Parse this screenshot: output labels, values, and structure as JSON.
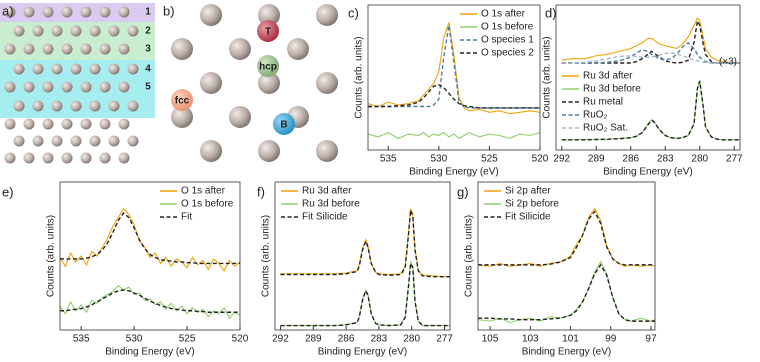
{
  "diagrams": {
    "a": {
      "label": "a)",
      "layers": [
        "1",
        "2",
        "3",
        "4",
        "5"
      ]
    },
    "b": {
      "label": "b)",
      "sites": [
        "T",
        "hcp",
        "fcc",
        "B"
      ]
    }
  },
  "chart_data": [
    {
      "type": "line",
      "panel_label": "c)",
      "xlabel": "Binding Energy (eV)",
      "ylabel": "Counts (arb. units)",
      "x": [
        537,
        536,
        535,
        534,
        533,
        532,
        531.5,
        531,
        530.5,
        530,
        529.5,
        529,
        528.5,
        528,
        527.5,
        527,
        526,
        525,
        524,
        523,
        522,
        521,
        520
      ],
      "xlim": [
        537,
        520
      ],
      "xticks": [
        535,
        530,
        525,
        520
      ],
      "ylim": [
        0,
        10
      ],
      "legend": "upper right",
      "series": [
        {
          "name": "O 1s after",
          "color": "#f0a30a",
          "values": [
            3.2,
            3.0,
            3.3,
            3.1,
            3.2,
            3.4,
            3.8,
            4.2,
            4.6,
            5.4,
            7.8,
            8.8,
            6.5,
            3.6,
            2.9,
            2.7,
            2.8,
            2.6,
            2.7,
            2.5,
            2.6,
            2.7,
            2.6
          ]
        },
        {
          "name": "O 1s before",
          "color": "#8fcf6b",
          "values": [
            1.1,
            0.9,
            1.2,
            0.8,
            1.1,
            1.0,
            1.2,
            0.9,
            1.1,
            1.0,
            1.2,
            0.9,
            1.1,
            0.8,
            1.0,
            1.2,
            0.9,
            1.1,
            1.0,
            0.8,
            1.1,
            1.0,
            1.2
          ]
        },
        {
          "name": "O species 1",
          "color": "#4a7fa0",
          "dash": true,
          "values": [
            3.0,
            3.0,
            3.0,
            3.0,
            3.0,
            3.0,
            3.0,
            3.0,
            3.1,
            3.5,
            6.5,
            8.6,
            6.0,
            3.3,
            3.0,
            2.9,
            2.9,
            2.9,
            2.9,
            2.9,
            2.9,
            2.9,
            2.9
          ]
        },
        {
          "name": "O species 2",
          "color": "#222222",
          "dash": true,
          "values": [
            3.0,
            3.0,
            3.0,
            3.05,
            3.1,
            3.3,
            3.6,
            4.0,
            4.4,
            4.5,
            4.3,
            3.9,
            3.5,
            3.2,
            3.05,
            3.0,
            2.9,
            2.9,
            2.9,
            2.9,
            2.9,
            2.9,
            2.9
          ]
        }
      ]
    },
    {
      "type": "line",
      "panel_label": "d)",
      "xlabel": "Binding Energy (eV)",
      "ylabel": "Counts (arb. units)",
      "annotation": "(×3)",
      "x": [
        292,
        291,
        290,
        289,
        288,
        287,
        286,
        285.5,
        285,
        284.5,
        284.2,
        284,
        283.5,
        283,
        282.5,
        282,
        281.5,
        281,
        280.5,
        280.2,
        280,
        279.7,
        279.5,
        279,
        278.5,
        278,
        277,
        276.5
      ],
      "xlim": [
        292.5,
        276.5
      ],
      "xticks": [
        292,
        289,
        286,
        283,
        280,
        277
      ],
      "ylim": [
        0,
        10
      ],
      "legend": "lower left",
      "series": [
        {
          "name": "Ru 3d after",
          "color": "#f0a30a",
          "values": [
            6.2,
            6.3,
            6.3,
            6.5,
            6.6,
            6.8,
            7.0,
            7.2,
            7.4,
            7.7,
            7.7,
            7.6,
            7.3,
            7.2,
            7.1,
            7.0,
            7.3,
            7.8,
            8.6,
            9.1,
            8.9,
            7.8,
            7.0,
            6.4,
            6.2,
            6.1,
            6.0,
            6.0
          ]
        },
        {
          "name": "Ru 3d before",
          "color": "#8fcf6b",
          "values": [
            0.7,
            0.7,
            0.72,
            0.75,
            0.75,
            0.8,
            0.85,
            0.95,
            1.2,
            1.8,
            2.1,
            2.0,
            1.4,
            1.0,
            0.85,
            0.8,
            0.85,
            1.0,
            1.8,
            4.3,
            4.8,
            3.0,
            1.6,
            0.9,
            0.75,
            0.7,
            0.7,
            0.7
          ]
        },
        {
          "name": "Ru metal",
          "color": "#222222",
          "dash": true,
          "values": [
            6.0,
            6.0,
            6.0,
            6.0,
            6.0,
            6.0,
            6.0,
            6.1,
            6.3,
            6.6,
            6.8,
            6.7,
            6.4,
            6.15,
            6.05,
            6.0,
            6.05,
            6.2,
            7.4,
            8.9,
            8.6,
            7.3,
            6.6,
            6.1,
            6.0,
            6.0,
            6.0,
            6.0
          ]
        },
        {
          "name": "RuO₂",
          "color": "#4a7fa0",
          "dash": true,
          "values": [
            6.0,
            6.0,
            6.0,
            6.0,
            6.05,
            6.15,
            6.4,
            6.7,
            6.9,
            6.8,
            6.6,
            6.5,
            6.3,
            6.2,
            6.3,
            6.6,
            7.1,
            7.4,
            7.0,
            6.6,
            6.4,
            6.2,
            6.1,
            6.0,
            6.0,
            6.0,
            6.0,
            6.0
          ]
        },
        {
          "name": "RuO₂ Sat.",
          "color": "#a9b8c4",
          "dash": true,
          "values": [
            6.0,
            6.0,
            6.05,
            6.15,
            6.3,
            6.45,
            6.5,
            6.45,
            6.4,
            6.4,
            6.4,
            6.45,
            6.55,
            6.65,
            6.7,
            6.65,
            6.5,
            6.35,
            6.2,
            6.15,
            6.1,
            6.05,
            6.05,
            6.0,
            6.0,
            6.0,
            6.0,
            6.0
          ]
        },
        {
          "color": "#222222",
          "dash": true,
          "values": [
            0.7,
            0.7,
            0.7,
            0.72,
            0.74,
            0.78,
            0.84,
            0.95,
            1.2,
            1.75,
            2.05,
            1.95,
            1.4,
            1.0,
            0.85,
            0.8,
            0.85,
            1.0,
            1.8,
            4.25,
            4.75,
            3.0,
            1.6,
            0.9,
            0.75,
            0.7,
            0.7,
            0.7
          ]
        }
      ]
    },
    {
      "type": "line",
      "panel_label": "e)",
      "xlabel": "Binding Energy (eV)",
      "ylabel": "Counts (arb. units)",
      "x": [
        537,
        536.5,
        536,
        535.5,
        535,
        534.5,
        534,
        533.5,
        533,
        532.5,
        532,
        531.5,
        531,
        530.5,
        530,
        529.5,
        529,
        528.5,
        528,
        527.5,
        527,
        526.5,
        526,
        525.5,
        525,
        524.5,
        524,
        523.5,
        523,
        522.5,
        522,
        521.5,
        521,
        520.5,
        520
      ],
      "xlim": [
        537,
        520
      ],
      "xticks": [
        535,
        530,
        525,
        520
      ],
      "ylim": [
        0,
        10
      ],
      "legend": "upper right",
      "series": [
        {
          "name": "O 1s after",
          "color": "#f0a30a",
          "values": [
            4.9,
            4.3,
            5.2,
            4.6,
            5.0,
            4.4,
            5.3,
            5.0,
            5.6,
            6.2,
            7.0,
            7.6,
            8.2,
            7.8,
            7.1,
            6.0,
            5.6,
            4.9,
            5.2,
            4.5,
            4.9,
            4.3,
            4.8,
            4.6,
            4.2,
            4.9,
            4.4,
            4.7,
            4.1,
            4.8,
            4.5,
            4.0,
            4.7,
            4.3,
            4.6
          ]
        },
        {
          "name": "O 1s before",
          "color": "#8fcf6b",
          "values": [
            1.6,
            1.1,
            1.9,
            1.3,
            1.7,
            1.2,
            2.0,
            1.8,
            2.2,
            2.4,
            2.6,
            3.0,
            2.7,
            2.9,
            2.4,
            2.5,
            2.0,
            2.1,
            1.7,
            1.9,
            1.4,
            1.8,
            1.3,
            1.6,
            1.1,
            1.5,
            1.2,
            1.4,
            0.9,
            1.3,
            1.1,
            1.5,
            0.8,
            1.2,
            1.0
          ]
        },
        {
          "name": "Fit",
          "color": "#222222",
          "dash": true,
          "values": [
            4.8,
            4.8,
            4.8,
            4.8,
            4.8,
            4.85,
            4.95,
            5.1,
            5.4,
            5.9,
            6.6,
            7.4,
            7.9,
            7.6,
            6.9,
            6.1,
            5.5,
            5.1,
            4.9,
            4.75,
            4.7,
            4.65,
            4.6,
            4.6,
            4.55,
            4.55,
            4.5,
            4.5,
            4.5,
            4.5,
            4.5,
            4.5,
            4.5,
            4.5,
            4.5
          ]
        },
        {
          "color": "#222222",
          "dash": true,
          "values": [
            1.3,
            1.3,
            1.35,
            1.4,
            1.45,
            1.55,
            1.7,
            1.9,
            2.1,
            2.3,
            2.5,
            2.65,
            2.7,
            2.65,
            2.5,
            2.35,
            2.15,
            1.95,
            1.8,
            1.65,
            1.55,
            1.45,
            1.4,
            1.35,
            1.3,
            1.3,
            1.25,
            1.25,
            1.2,
            1.2,
            1.2,
            1.2,
            1.2,
            1.2,
            1.2
          ]
        }
      ]
    },
    {
      "type": "line",
      "panel_label": "f)",
      "xlabel": "Binding Energy (eV)",
      "ylabel": "Counts (arb. units)",
      "x": [
        292,
        291,
        290,
        289,
        288,
        287,
        286,
        285,
        284.8,
        284.5,
        284.2,
        284,
        283.7,
        283.3,
        283,
        282,
        281,
        280.6,
        280.3,
        280.1,
        279.9,
        279.7,
        279.4,
        279,
        278,
        277,
        276.5
      ],
      "xlim": [
        292.5,
        276.5
      ],
      "xticks": [
        292,
        289,
        286,
        283,
        280,
        277
      ],
      "ylim": [
        0,
        10
      ],
      "legend": "upper left",
      "series": [
        {
          "name": "Ru 3d after",
          "color": "#f0a30a",
          "values": [
            3.8,
            3.8,
            3.8,
            3.8,
            3.8,
            3.8,
            3.85,
            4.0,
            4.4,
            5.5,
            6.1,
            5.7,
            4.5,
            3.9,
            3.8,
            3.75,
            3.8,
            4.3,
            6.5,
            8.2,
            7.8,
            5.5,
            4.0,
            3.7,
            3.65,
            3.6,
            3.6
          ]
        },
        {
          "name": "Ru 3d before",
          "color": "#8fcf6b",
          "values": [
            0.3,
            0.3,
            0.3,
            0.3,
            0.3,
            0.3,
            0.35,
            0.5,
            0.9,
            2.1,
            2.7,
            2.4,
            1.1,
            0.45,
            0.35,
            0.3,
            0.35,
            0.9,
            3.0,
            4.6,
            4.3,
            2.0,
            0.6,
            0.3,
            0.3,
            0.3,
            0.3
          ]
        },
        {
          "name": "Fit Silicide",
          "color": "#222222",
          "dash": true,
          "values": [
            3.75,
            3.75,
            3.75,
            3.75,
            3.75,
            3.75,
            3.8,
            3.95,
            4.3,
            5.4,
            6.0,
            5.6,
            4.5,
            3.9,
            3.75,
            3.7,
            3.75,
            4.2,
            6.4,
            8.1,
            7.7,
            5.4,
            4.0,
            3.65,
            3.6,
            3.6,
            3.6
          ]
        },
        {
          "color": "#222222",
          "dash": true,
          "values": [
            0.3,
            0.3,
            0.3,
            0.3,
            0.3,
            0.3,
            0.35,
            0.5,
            0.85,
            2.0,
            2.65,
            2.35,
            1.1,
            0.45,
            0.35,
            0.3,
            0.35,
            0.85,
            2.9,
            4.5,
            4.2,
            1.95,
            0.6,
            0.3,
            0.3,
            0.3,
            0.3
          ]
        }
      ]
    },
    {
      "type": "line",
      "panel_label": "g)",
      "xlabel": "Binding Energy (eV)",
      "ylabel": "Counts (arb. units)",
      "x": [
        105.6,
        105,
        104.5,
        104,
        103.5,
        103,
        102.5,
        102,
        101.5,
        101,
        100.7,
        100.4,
        100.1,
        99.8,
        99.5,
        99.2,
        98.9,
        98.6,
        98.3,
        98,
        97.5,
        97,
        96.8
      ],
      "xlim": [
        105.6,
        96.8
      ],
      "xticks": [
        105,
        103,
        101,
        99,
        97
      ],
      "ylim": [
        0,
        10
      ],
      "legend": "upper left",
      "series": [
        {
          "name": "Si 2p after",
          "color": "#f0a30a",
          "values": [
            4.4,
            4.3,
            4.5,
            4.3,
            4.4,
            4.5,
            4.3,
            4.5,
            4.6,
            5.0,
            5.8,
            6.4,
            7.6,
            8.2,
            7.4,
            5.7,
            4.8,
            4.5,
            4.3,
            4.4,
            4.3,
            4.4,
            4.3
          ]
        },
        {
          "name": "Si 2p before",
          "color": "#8fcf6b",
          "values": [
            0.7,
            0.6,
            0.8,
            0.5,
            0.7,
            0.8,
            0.6,
            0.9,
            0.8,
            1.0,
            1.4,
            1.9,
            2.8,
            3.9,
            4.6,
            3.8,
            2.2,
            1.1,
            0.7,
            0.6,
            0.8,
            0.6,
            0.7
          ]
        },
        {
          "name": "Fit Silicide",
          "color": "#222222",
          "dash": true,
          "values": [
            4.4,
            4.4,
            4.4,
            4.4,
            4.4,
            4.4,
            4.4,
            4.45,
            4.6,
            4.9,
            5.6,
            6.4,
            7.5,
            8.0,
            7.2,
            5.6,
            4.8,
            4.5,
            4.4,
            4.4,
            4.4,
            4.4,
            4.4
          ]
        },
        {
          "color": "#222222",
          "dash": true,
          "values": [
            0.8,
            0.8,
            0.75,
            0.75,
            0.7,
            0.7,
            0.7,
            0.75,
            0.8,
            1.0,
            1.3,
            1.9,
            2.8,
            3.8,
            4.4,
            3.7,
            2.2,
            1.1,
            0.7,
            0.6,
            0.6,
            0.6,
            0.6
          ]
        }
      ]
    }
  ]
}
